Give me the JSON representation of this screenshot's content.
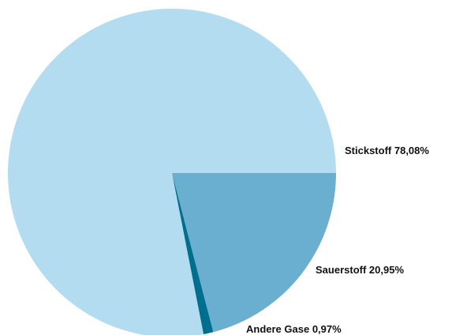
{
  "chart_data": {
    "type": "pie",
    "categories": [
      "Sauerstoff",
      "Andere Gase",
      "Stickstoff"
    ],
    "values": [
      20.95,
      0.97,
      78.08
    ],
    "value_labels": [
      "20,95%",
      "0,97%",
      "78,08%"
    ],
    "colors": [
      "#6aaed0",
      "#006e8f",
      "#b3dcf0"
    ]
  }
}
